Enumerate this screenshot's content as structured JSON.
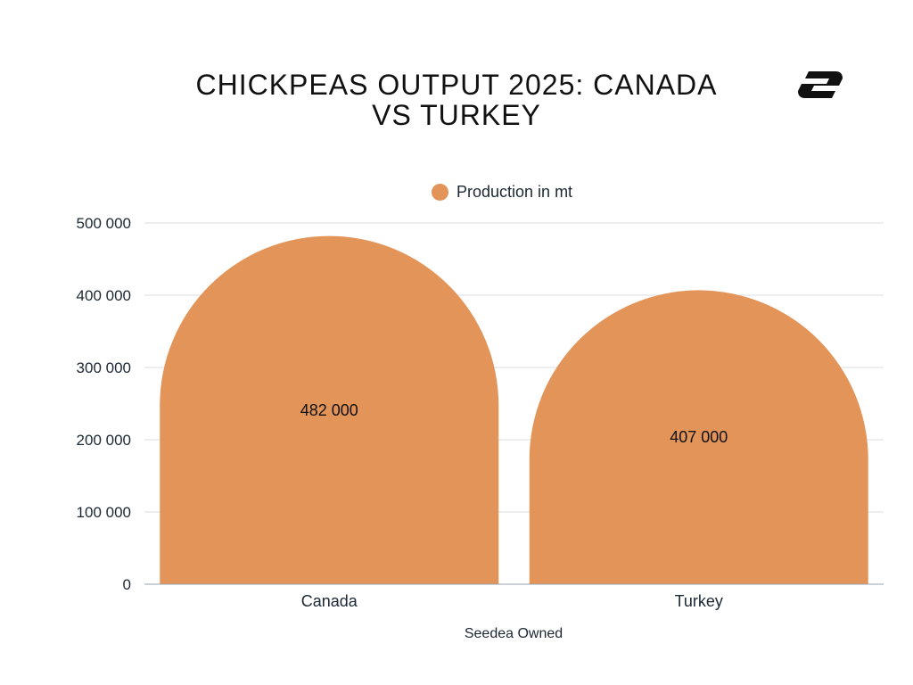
{
  "title": "CHICKPEAS OUTPUT 2025: CANADA VS TURKEY",
  "footer": "Seedea Owned",
  "logo": {
    "icon": "brand-s-logo-icon"
  },
  "colors": {
    "bar": "#e29459",
    "grid": "#d9dde1",
    "axis": "#9aa3ab",
    "text": "#1c2733"
  },
  "chart_data": {
    "type": "bar",
    "categories": [
      "Canada",
      "Turkey"
    ],
    "series": [
      {
        "name": "Production in mt",
        "values": [
          482000,
          407000
        ]
      }
    ],
    "data_labels": [
      "482 000",
      "407 000"
    ],
    "y_ticks": [
      0,
      100000,
      200000,
      300000,
      400000,
      500000
    ],
    "y_tick_labels": [
      "0",
      "100 000",
      "200 000",
      "300 000",
      "400 000",
      "500 000"
    ],
    "ylim": [
      0,
      500000
    ],
    "grid": true,
    "legend": "top-center",
    "xlabel": "",
    "ylabel": "",
    "bar_shape": "rounded-top"
  }
}
